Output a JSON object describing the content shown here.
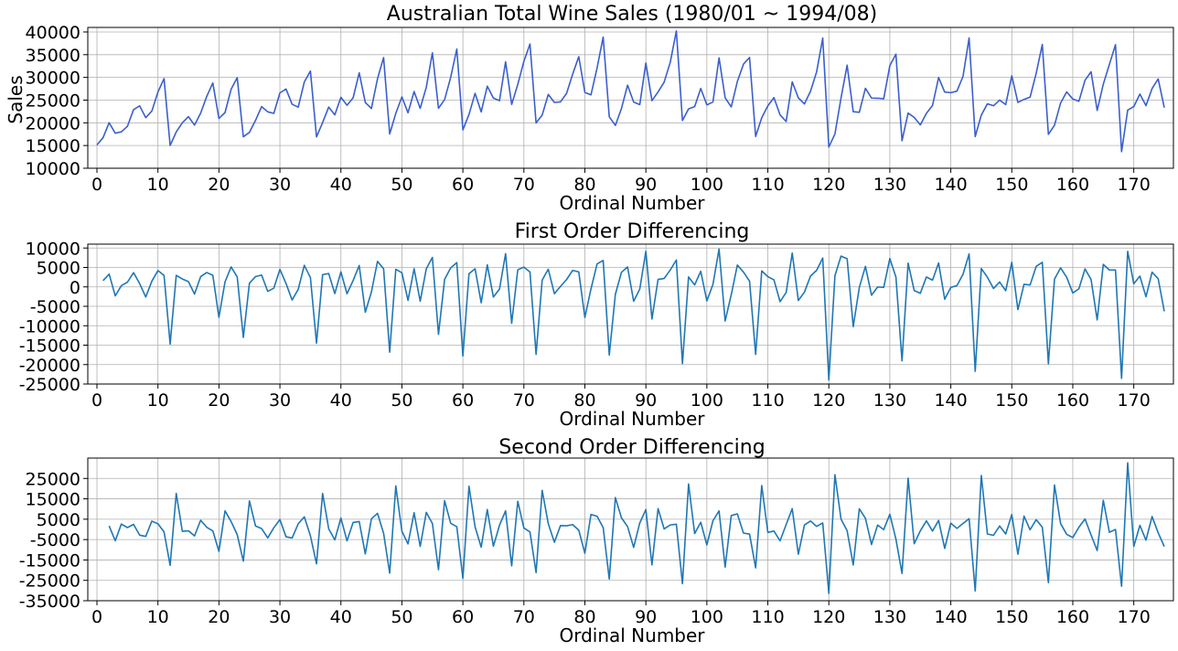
{
  "chart_data": [
    {
      "type": "line",
      "title": "Australian Total Wine Sales (1980/01 ~ 1994/08)",
      "xlabel": "Ordinal Number",
      "ylabel": "Sales",
      "xlim": [
        -1.5,
        176.5
      ],
      "ylim": [
        10000,
        41000
      ],
      "xticks": [
        0,
        10,
        20,
        30,
        40,
        50,
        60,
        70,
        80,
        90,
        100,
        110,
        120,
        130,
        140,
        150,
        160,
        170
      ],
      "yticks": [
        10000,
        15000,
        20000,
        25000,
        30000,
        35000,
        40000
      ],
      "grid": true,
      "color": "#3a5fcd",
      "series": [
        {
          "x_start": 0,
          "values": [
            15136,
            16733,
            20016,
            17708,
            18019,
            19227,
            22893,
            23739,
            21133,
            22591,
            26786,
            29740,
            15028,
            17977,
            20008,
            21354,
            19498,
            22125,
            25817,
            28779,
            20960,
            22254,
            27392,
            29945,
            16933,
            17892,
            20533,
            23569,
            22417,
            22084,
            26580,
            27454,
            24081,
            23451,
            28991,
            31386,
            16896,
            20045,
            23471,
            21747,
            25621,
            23859,
            25500,
            30998,
            24475,
            23145,
            29701,
            34365,
            17556,
            22077,
            25702,
            22214,
            26886,
            23191,
            27831,
            35406,
            23195,
            25110,
            30009,
            36242,
            18450,
            21845,
            26488,
            22394,
            28057,
            25451,
            24872,
            33424,
            24052,
            28449,
            33533,
            37351,
            19969,
            21701,
            26249,
            24493,
            24603,
            26485,
            30723,
            34569,
            26689,
            26157,
            32064,
            38870,
            21337,
            19419,
            23166,
            28286,
            24570,
            24001,
            33151,
            24878,
            26804,
            28967,
            33311,
            40226,
            20504,
            23060,
            23562,
            27562,
            23940,
            24584,
            34303,
            25517,
            23494,
            29095,
            32903,
            34379,
            16991,
            21109,
            23740,
            25552,
            21752,
            20294,
            29009,
            25500,
            24166,
            26960,
            31222,
            38641,
            14672,
            17543,
            25453,
            32683,
            22449,
            22316,
            27595,
            25451,
            25421,
            25288,
            32568,
            35110,
            16052,
            22146,
            21198,
            19543,
            22084,
            23816,
            29961,
            26773,
            26635,
            26972,
            30207,
            38687,
            16974,
            21697,
            24179,
            23757,
            25013,
            24019,
            30345,
            24488,
            25156,
            25650,
            30923,
            37240,
            17466,
            19463,
            24352,
            26805,
            25236,
            24735,
            29356,
            31234,
            22724,
            28496,
            32857,
            37198,
            13652,
            22784,
            23565,
            26323,
            23779,
            27549,
            29660,
            23356
          ]
        }
      ]
    },
    {
      "type": "line",
      "title": "First Order Differencing",
      "xlabel": "Ordinal Number",
      "ylabel": "",
      "xlim": [
        -1.5,
        176.5
      ],
      "ylim": [
        -25000,
        11000
      ],
      "xticks": [
        0,
        10,
        20,
        30,
        40,
        50,
        60,
        70,
        80,
        90,
        100,
        110,
        120,
        130,
        140,
        150,
        160,
        170
      ],
      "yticks": [
        -25000,
        -20000,
        -15000,
        -10000,
        -5000,
        0,
        5000,
        10000
      ],
      "grid": true,
      "color": "#1f77b4",
      "series": [
        {
          "x_start": 1,
          "values": [
            1597,
            3283,
            -2308,
            311,
            1208,
            3666,
            846,
            -2606,
            1458,
            4195,
            2954,
            -14712,
            2949,
            2031,
            1346,
            -1856,
            2627,
            3692,
            2962,
            -7819,
            1294,
            5138,
            2553,
            -13012,
            959,
            2641,
            3036,
            -1152,
            -333,
            4496,
            874,
            -3373,
            -630,
            5540,
            2395,
            -14490,
            3149,
            3426,
            -1724,
            3874,
            -1762,
            1641,
            5498,
            -6523,
            -1330,
            6556,
            4664,
            -16809,
            4521,
            3625,
            -3488,
            4672,
            -3695,
            4640,
            7575,
            -12211,
            1915,
            4899,
            6233,
            -17792,
            3395,
            4643,
            -4094,
            5663,
            -2606,
            -579,
            8552,
            -9372,
            4397,
            5084,
            3818,
            -17382,
            1732,
            4548,
            -1756,
            110,
            1882,
            4238,
            3846,
            -7880,
            -532,
            5907,
            6806,
            -17533,
            -1918,
            3747,
            5120,
            -3716,
            -569,
            9150,
            -8273,
            1926,
            2163,
            4344,
            6915,
            -19722,
            2556,
            502,
            4000,
            -3622,
            644,
            9719,
            -8786,
            -2023,
            5601,
            3808,
            1476,
            -17388,
            4118,
            2631,
            1812,
            -3800,
            -1458,
            8715,
            -3509,
            -1334,
            2794,
            4262,
            7419,
            -23969,
            2871,
            7910,
            7230,
            -10234,
            -133,
            5279,
            -2144,
            -30,
            -133,
            7280,
            2542,
            -19058,
            6094,
            -948,
            -1655,
            2541,
            1732,
            6145,
            -3188,
            -138,
            337,
            3235,
            8480,
            -21713,
            4723,
            2482,
            -422,
            1256,
            -994,
            6326,
            -5857,
            668,
            494,
            5273,
            6317,
            -19774,
            1997,
            4889,
            2453,
            -1569,
            -501,
            4621,
            1878,
            -8510,
            5772,
            4361,
            4341,
            -23546,
            9132,
            781,
            2758,
            -2544,
            3770,
            2111,
            -6304
          ]
        }
      ]
    },
    {
      "type": "line",
      "title": "Second Order Differencing",
      "xlabel": "Ordinal Number",
      "ylabel": "",
      "xlim": [
        -1.5,
        176.5
      ],
      "ylim": [
        -35000,
        35000
      ],
      "xticks": [
        0,
        10,
        20,
        30,
        40,
        50,
        60,
        70,
        80,
        90,
        100,
        110,
        120,
        130,
        140,
        150,
        160,
        170
      ],
      "yticks": [
        -35000,
        -25000,
        -15000,
        -5000,
        5000,
        15000,
        25000
      ],
      "grid": true,
      "color": "#1f77b4",
      "series": [
        {
          "x_start": 2,
          "values": [
            1686,
            -5591,
            2619,
            897,
            2458,
            -2820,
            -3452,
            4064,
            2737,
            -1241,
            -17666,
            17661,
            -918,
            -685,
            -3202,
            4483,
            1065,
            -730,
            -10781,
            9113,
            3844,
            -2585,
            -15565,
            13971,
            1682,
            395,
            -4188,
            819,
            4829,
            -3622,
            -4247,
            2743,
            6170,
            -3145,
            -16885,
            17639,
            277,
            -5150,
            5598,
            -5636,
            3403,
            3857,
            -12021,
            5193,
            7886,
            -1892,
            -21473,
            21330,
            -896,
            -7113,
            8160,
            -8367,
            8335,
            2935,
            -19786,
            14126,
            2984,
            1334,
            -24025,
            21187,
            1248,
            -8737,
            9757,
            -8269,
            2027,
            9131,
            -17924,
            13769,
            687,
            -1266,
            -21200,
            19114,
            2816,
            -6304,
            1866,
            1772,
            2356,
            -392,
            -11726,
            7348,
            6439,
            899,
            -24339,
            15615,
            5665,
            1373,
            -8836,
            3147,
            9719,
            -17423,
            10199,
            237,
            2181,
            2571,
            -26637,
            22278,
            -2054,
            3498,
            -7622,
            4266,
            9075,
            -18505,
            6763,
            7624,
            -1793,
            -2332,
            -18864,
            21506,
            -1487,
            -819,
            -5612,
            2342,
            10173,
            -12224,
            2175,
            4128,
            1468,
            3157,
            -31388,
            26840,
            5039,
            -680,
            -17464,
            10101,
            5412,
            -7423,
            2114,
            -103,
            7413,
            -4738,
            -21600,
            25152,
            -7042,
            -707,
            4196,
            -809,
            4413,
            -9333,
            3050,
            475,
            2898,
            5245,
            -30193,
            26436,
            -2241,
            -2904,
            1678,
            -2250,
            7320,
            -12183,
            6525,
            -174,
            4779,
            1044,
            -26091,
            21771,
            2892,
            -2436,
            -4022,
            1068,
            5122,
            -2743,
            -10388,
            14282,
            -1411,
            -20,
            -27887,
            32678,
            -8351,
            1977,
            -5302,
            6314,
            -1659,
            -8415
          ]
        }
      ]
    }
  ]
}
